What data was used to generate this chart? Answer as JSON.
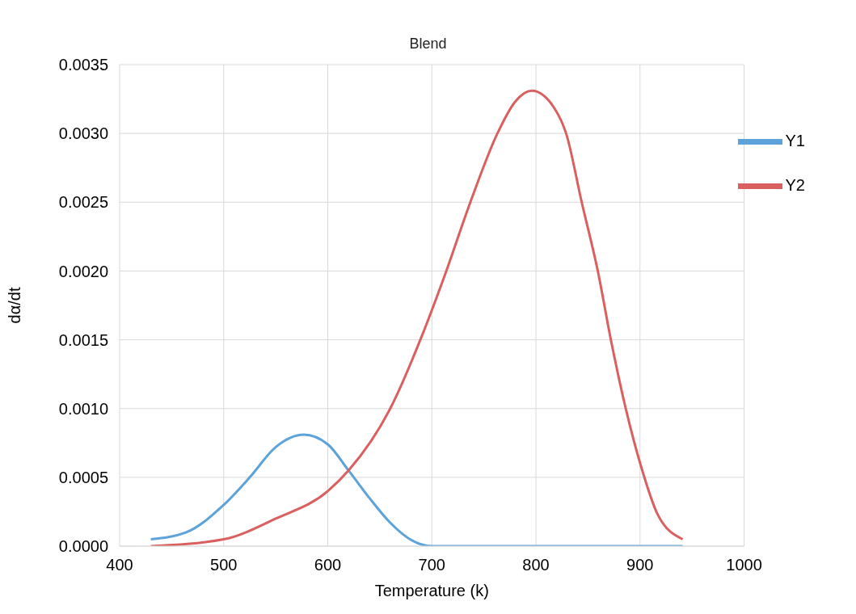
{
  "chart_data": {
    "type": "line",
    "title": "Blend",
    "xlabel": "Temperature (k)",
    "ylabel": "dα/dt",
    "xlim": [
      400,
      1000
    ],
    "xticks": [
      400,
      500,
      600,
      700,
      800,
      900,
      1000
    ],
    "ylim": [
      0,
      0.0035
    ],
    "yticks": [
      {
        "value": 0,
        "label": "0.0000"
      },
      {
        "value": 0.0005,
        "label": "0.0005"
      },
      {
        "value": 0.001,
        "label": "0.0010"
      },
      {
        "value": 0.0015,
        "label": "0.0015"
      },
      {
        "value": 0.002,
        "label": "0.0020"
      },
      {
        "value": 0.0025,
        "label": "0.0025"
      },
      {
        "value": 0.003,
        "label": "0.0030"
      },
      {
        "value": 0.0035,
        "label": "0.0035"
      }
    ],
    "grid": true,
    "legend": "top right",
    "marker": "none",
    "line_style": "solid",
    "series": [
      {
        "name": "Y1",
        "color": "#5ba3d9",
        "x": [
          430,
          464,
          500,
          525,
          550,
          577,
          600,
          620,
          640,
          660,
          679,
          700,
          720,
          750,
          800,
          850,
          900,
          941
        ],
        "values": [
          5e-05,
          0.0001,
          0.0003,
          0.0005,
          0.00072,
          0.00081,
          0.00074,
          0.00055,
          0.00035,
          0.00017,
          5e-05,
          0,
          0,
          0,
          0,
          0,
          0,
          0
        ]
      },
      {
        "name": "Y2",
        "color": "#d9605f",
        "x": [
          430,
          500,
          550,
          600,
          620,
          660,
          690,
          712,
          737,
          763,
          780,
          796,
          818,
          829,
          844,
          860,
          872,
          886,
          901,
          917,
          941
        ],
        "values": [
          0,
          5e-05,
          0.0002,
          0.0004,
          0.00055,
          0.001,
          0.00152,
          0.00196,
          0.0025,
          0.003,
          0.00323,
          0.00331,
          0.00318,
          0.003,
          0.0025,
          0.00198,
          0.0015,
          0.00101,
          0.00058,
          0.00023,
          5e-05
        ]
      }
    ]
  }
}
